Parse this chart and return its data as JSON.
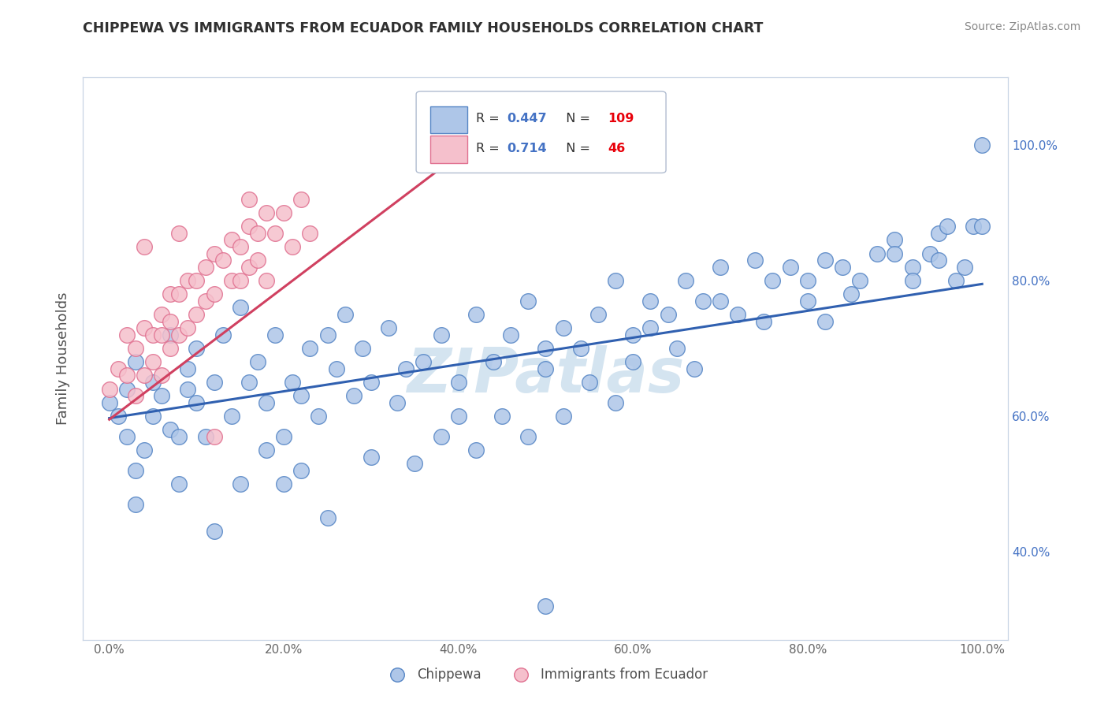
{
  "title": "CHIPPEWA VS IMMIGRANTS FROM ECUADOR FAMILY HOUSEHOLDS CORRELATION CHART",
  "source": "Source: ZipAtlas.com",
  "ylabel": "Family Households",
  "legend_label1": "Chippewa",
  "legend_label2": "Immigrants from Ecuador",
  "r1": 0.447,
  "n1": 109,
  "r2": 0.714,
  "n2": 46,
  "r_color": "#4472c4",
  "n_color": "#e8000a",
  "blue_fill": "#aec6e8",
  "blue_edge": "#5585c5",
  "pink_fill": "#f5c0cc",
  "pink_edge": "#e07090",
  "blue_line_color": "#3060b0",
  "pink_line_color": "#d04060",
  "watermark_color": "#d4e4f0",
  "title_color": "#303030",
  "bg_color": "#ffffff",
  "grid_color": "#c8d4e4",
  "right_tick_color": "#4472c4",
  "ylim": [
    0.27,
    1.1
  ],
  "xlim": [
    -0.03,
    1.03
  ],
  "blue_line_x0": 0.0,
  "blue_line_x1": 1.0,
  "blue_line_y0": 0.597,
  "blue_line_y1": 0.795,
  "pink_line_x0": 0.0,
  "pink_line_x1": 0.42,
  "pink_line_y0": 0.595,
  "pink_line_y1": 1.005,
  "blue_x": [
    0.0,
    0.01,
    0.02,
    0.02,
    0.03,
    0.03,
    0.04,
    0.05,
    0.05,
    0.06,
    0.07,
    0.07,
    0.08,
    0.09,
    0.09,
    0.1,
    0.1,
    0.11,
    0.12,
    0.13,
    0.14,
    0.15,
    0.16,
    0.17,
    0.18,
    0.19,
    0.2,
    0.21,
    0.22,
    0.23,
    0.24,
    0.25,
    0.26,
    0.27,
    0.28,
    0.29,
    0.3,
    0.32,
    0.34,
    0.36,
    0.38,
    0.4,
    0.42,
    0.44,
    0.46,
    0.48,
    0.5,
    0.5,
    0.52,
    0.54,
    0.56,
    0.58,
    0.6,
    0.62,
    0.62,
    0.64,
    0.66,
    0.68,
    0.7,
    0.72,
    0.74,
    0.76,
    0.78,
    0.8,
    0.82,
    0.84,
    0.86,
    0.88,
    0.9,
    0.92,
    0.94,
    0.95,
    0.96,
    0.97,
    0.98,
    0.99,
    1.0,
    1.0,
    0.35,
    0.45,
    0.55,
    0.65,
    0.75,
    0.85,
    0.95,
    0.25,
    0.15,
    0.08,
    0.03,
    0.22,
    0.38,
    0.52,
    0.67,
    0.82,
    0.92,
    0.48,
    0.58,
    0.3,
    0.4,
    0.6,
    0.7,
    0.8,
    0.9,
    0.5,
    0.2,
    0.12,
    0.18,
    0.33,
    0.42
  ],
  "blue_y": [
    0.62,
    0.6,
    0.57,
    0.64,
    0.52,
    0.68,
    0.55,
    0.65,
    0.6,
    0.63,
    0.58,
    0.72,
    0.5,
    0.64,
    0.67,
    0.62,
    0.7,
    0.57,
    0.65,
    0.72,
    0.6,
    0.76,
    0.65,
    0.68,
    0.62,
    0.72,
    0.57,
    0.65,
    0.63,
    0.7,
    0.6,
    0.72,
    0.67,
    0.75,
    0.63,
    0.7,
    0.65,
    0.73,
    0.67,
    0.68,
    0.72,
    0.65,
    0.75,
    0.68,
    0.72,
    0.77,
    0.7,
    0.67,
    0.73,
    0.7,
    0.75,
    0.8,
    0.68,
    0.77,
    0.73,
    0.75,
    0.8,
    0.77,
    0.82,
    0.75,
    0.83,
    0.8,
    0.82,
    0.77,
    0.83,
    0.82,
    0.8,
    0.84,
    0.86,
    0.82,
    0.84,
    0.87,
    0.88,
    0.8,
    0.82,
    0.88,
    1.0,
    0.88,
    0.53,
    0.6,
    0.65,
    0.7,
    0.74,
    0.78,
    0.83,
    0.45,
    0.5,
    0.57,
    0.47,
    0.52,
    0.57,
    0.6,
    0.67,
    0.74,
    0.8,
    0.57,
    0.62,
    0.54,
    0.6,
    0.72,
    0.77,
    0.8,
    0.84,
    0.32,
    0.5,
    0.43,
    0.55,
    0.62,
    0.55
  ],
  "pink_x": [
    0.0,
    0.01,
    0.02,
    0.02,
    0.03,
    0.03,
    0.04,
    0.04,
    0.05,
    0.05,
    0.06,
    0.06,
    0.06,
    0.07,
    0.07,
    0.07,
    0.08,
    0.08,
    0.09,
    0.09,
    0.1,
    0.1,
    0.11,
    0.11,
    0.12,
    0.12,
    0.13,
    0.14,
    0.14,
    0.15,
    0.15,
    0.16,
    0.16,
    0.17,
    0.17,
    0.18,
    0.18,
    0.19,
    0.2,
    0.21,
    0.22,
    0.23,
    0.04,
    0.08,
    0.12,
    0.16
  ],
  "pink_y": [
    0.64,
    0.67,
    0.66,
    0.72,
    0.63,
    0.7,
    0.66,
    0.73,
    0.68,
    0.72,
    0.66,
    0.72,
    0.75,
    0.7,
    0.74,
    0.78,
    0.72,
    0.78,
    0.73,
    0.8,
    0.75,
    0.8,
    0.77,
    0.82,
    0.78,
    0.84,
    0.83,
    0.8,
    0.86,
    0.8,
    0.85,
    0.88,
    0.82,
    0.87,
    0.83,
    0.8,
    0.9,
    0.87,
    0.9,
    0.85,
    0.92,
    0.87,
    0.85,
    0.87,
    0.57,
    0.92
  ]
}
